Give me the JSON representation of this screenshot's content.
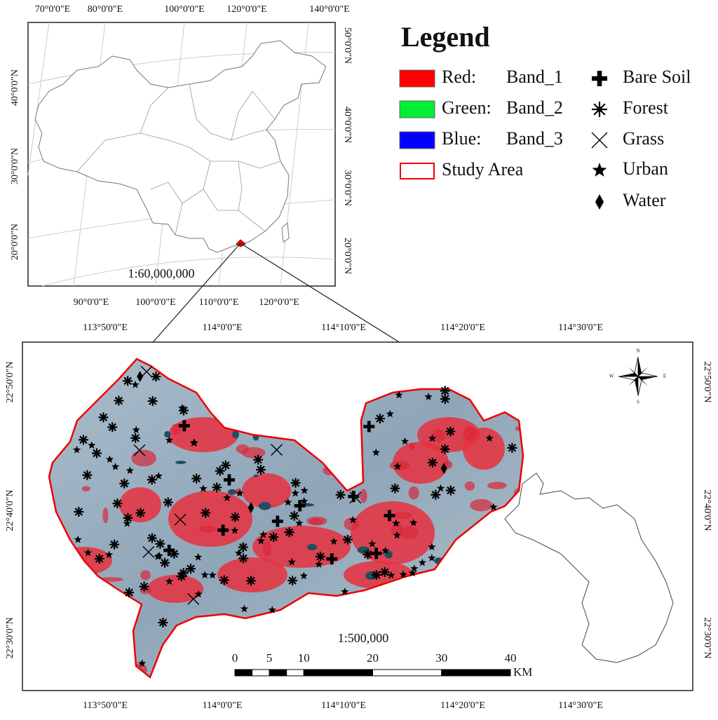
{
  "inset_map": {
    "top_labels": [
      "70°0'0\"E",
      "80°0'0\"E",
      "100°0'0\"E",
      "120°0'0\"E",
      "140°0'0\"E"
    ],
    "bottom_labels": [
      "90°0'0\"E",
      "100°0'0\"E",
      "110°0'0\"E",
      "120°0'0\"E"
    ],
    "left_labels": [
      "40°0'0\"N",
      "30°0'0\"N",
      "20°0'0\"N"
    ],
    "right_labels": [
      "50°0'0\"N",
      "40°0'0\"N",
      "30°0'0\"N",
      "20°0'0\"N"
    ],
    "scale": "1:60,000,000"
  },
  "legend": {
    "title": "Legend",
    "bands": [
      {
        "label": "Red:",
        "band": "Band_1",
        "color": "#ff0000"
      },
      {
        "label": "Green:",
        "band": "Band_2",
        "color": "#00ee33"
      },
      {
        "label": "Blue:",
        "band": "Band_3",
        "color": "#0000ff"
      }
    ],
    "study_area": "Study Area",
    "classes": [
      "Bare Soil",
      "Forest",
      "Grass",
      "Urban",
      "Water"
    ]
  },
  "main_map": {
    "top_labels": [
      "113°50'0\"E",
      "114°0'0\"E",
      "114°10'0\"E",
      "114°20'0\"E",
      "114°30'0\"E"
    ],
    "bottom_labels": [
      "113°50'0\"E",
      "114°0'0\"E",
      "114°10'0\"E",
      "114°20'0\"E",
      "114°30'0\"E"
    ],
    "left_labels": [
      "22°50'0\"N",
      "22°40'0\"N",
      "22°30'0\"N"
    ],
    "right_labels": [
      "22°50'0\"N",
      "22°40'0\"N",
      "22°30'0\"N"
    ],
    "scale": "1:500,000",
    "scale_bar": {
      "ticks": [
        0,
        5,
        10,
        20,
        30,
        40
      ],
      "unit": "KM"
    },
    "compass": [
      "N",
      "E",
      "S",
      "W"
    ]
  }
}
